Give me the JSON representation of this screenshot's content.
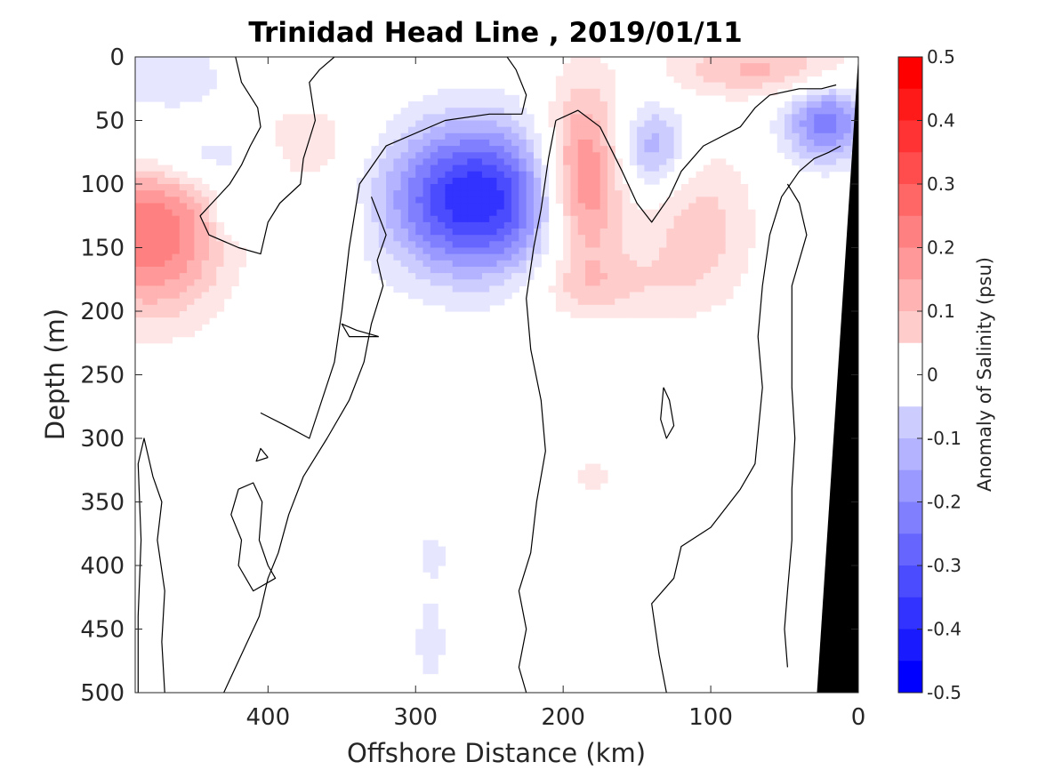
{
  "chart_data": {
    "type": "heatmap",
    "title": "Trinidad Head Line , 2019/01/11",
    "xlabel": "Offshore Distance (km)",
    "ylabel": "Depth (m)",
    "x_reversed": true,
    "y_reversed": true,
    "xlim": [
      490,
      0
    ],
    "ylim": [
      0,
      500
    ],
    "xticks": [
      "400",
      "300",
      "200",
      "100",
      "0"
    ],
    "xtick_values": [
      400,
      300,
      200,
      100,
      0
    ],
    "yticks": [
      "0",
      "50",
      "100",
      "150",
      "200",
      "250",
      "300",
      "350",
      "400",
      "450",
      "500"
    ],
    "ytick_values": [
      0,
      50,
      100,
      150,
      200,
      250,
      300,
      350,
      400,
      450,
      500
    ],
    "colorbar": {
      "label": "Anomaly of Salinity (psu)",
      "range": [
        -0.5,
        0.5
      ],
      "step": 0.05,
      "tick_values": [
        0.5,
        0.4,
        0.3,
        0.2,
        0.1,
        0,
        -0.1,
        -0.2,
        -0.3,
        -0.4,
        -0.5
      ],
      "tick_labels": [
        "0.5",
        "0.4",
        "0.3",
        "0.2",
        "0.1",
        "0",
        "-0.1",
        "-0.2",
        "-0.3",
        "-0.4",
        "-0.5"
      ],
      "positive_color": "#ff0000",
      "negative_color": "#0000ff",
      "neutral_color": "#ffffff"
    },
    "zero_contour_color": "#000000",
    "land_color": "#000000",
    "grid": false,
    "features": [
      {
        "kind": "anomaly",
        "sign": "negative",
        "x_km": 260,
        "depth_m": 112,
        "peak": -0.45,
        "sx_km": 42,
        "sd_m": 42
      },
      {
        "kind": "anomaly",
        "sign": "positive",
        "x_km": 187,
        "depth_m": 97,
        "peak": 0.32,
        "sx_km": 20,
        "sd_m": 50
      },
      {
        "kind": "anomaly",
        "sign": "positive",
        "x_km": 480,
        "depth_m": 140,
        "peak": 0.3,
        "sx_km": 35,
        "sd_m": 45
      },
      {
        "kind": "anomaly",
        "sign": "negative",
        "x_km": 22,
        "depth_m": 52,
        "peak": -0.28,
        "sx_km": 20,
        "sd_m": 22
      },
      {
        "kind": "anomaly",
        "sign": "negative",
        "x_km": 140,
        "depth_m": 72,
        "peak": -0.2,
        "sx_km": 17,
        "sd_m": 25
      },
      {
        "kind": "anomaly",
        "sign": "negative",
        "x_km": 445,
        "depth_m": 80,
        "peak": -0.12,
        "sx_km": 35,
        "sd_m": 15
      },
      {
        "kind": "anomaly",
        "sign": "negative",
        "x_km": 425,
        "depth_m": 120,
        "peak": -0.1,
        "sx_km": 10,
        "sd_m": 15
      },
      {
        "kind": "anomaly",
        "sign": "negative",
        "x_km": 470,
        "depth_m": 20,
        "peak": -0.09,
        "sx_km": 35,
        "sd_m": 25
      },
      {
        "kind": "anomaly",
        "sign": "positive",
        "x_km": 65,
        "depth_m": 10,
        "peak": 0.16,
        "sx_km": 45,
        "sd_m": 15
      },
      {
        "kind": "anomaly",
        "sign": "positive",
        "x_km": 110,
        "depth_m": 135,
        "peak": 0.13,
        "sx_km": 28,
        "sd_m": 45
      },
      {
        "kind": "anomaly",
        "sign": "positive",
        "x_km": 375,
        "depth_m": 70,
        "peak": 0.1,
        "sx_km": 28,
        "sd_m": 25
      },
      {
        "kind": "anomaly",
        "sign": "positive",
        "x_km": 175,
        "depth_m": 180,
        "peak": 0.09,
        "sx_km": 35,
        "sd_m": 18
      },
      {
        "kind": "anomaly",
        "sign": "positive",
        "x_km": 10,
        "depth_m": 400,
        "peak": 0.08,
        "sx_km": 6,
        "sd_m": 120
      },
      {
        "kind": "anomaly",
        "sign": "positive",
        "x_km": 180,
        "depth_m": 330,
        "peak": 0.07,
        "sx_km": 10,
        "sd_m": 12
      },
      {
        "kind": "anomaly",
        "sign": "negative",
        "x_km": 290,
        "depth_m": 460,
        "peak": -0.07,
        "sx_km": 10,
        "sd_m": 35
      },
      {
        "kind": "anomaly",
        "sign": "negative",
        "x_km": 288,
        "depth_m": 390,
        "peak": -0.06,
        "sx_km": 8,
        "sd_m": 15
      },
      {
        "kind": "anomaly",
        "sign": "positive",
        "x_km": 350,
        "depth_m": 130,
        "peak": 0.07,
        "sx_km": 12,
        "sd_m": 15
      }
    ],
    "zero_contours": [
      {
        "name": "contour-west-deep",
        "points": [
          [
            470,
            500
          ],
          [
            472,
            460
          ],
          [
            470,
            420
          ],
          [
            475,
            380
          ],
          [
            472,
            350
          ],
          [
            478,
            330
          ],
          [
            484,
            300
          ],
          [
            488,
            320
          ],
          [
            486,
            380
          ],
          [
            488,
            440
          ],
          [
            488,
            500
          ]
        ]
      },
      {
        "name": "contour-central-west",
        "points": [
          [
            405,
            280
          ],
          [
            388,
            290
          ],
          [
            372,
            300
          ],
          [
            355,
            240
          ],
          [
            350,
            200
          ],
          [
            345,
            150
          ],
          [
            338,
            100
          ],
          [
            320,
            70
          ],
          [
            280,
            50
          ],
          [
            250,
            45
          ],
          [
            228,
            45
          ],
          [
            225,
            30
          ],
          [
            232,
            10
          ],
          [
            238,
            0
          ],
          [
            355,
            0
          ],
          [
            365,
            10
          ],
          [
            372,
            20
          ],
          [
            368,
            50
          ],
          [
            376,
            80
          ],
          [
            378,
            100
          ],
          [
            392,
            115
          ],
          [
            400,
            130
          ],
          [
            405,
            155
          ],
          [
            420,
            150
          ],
          [
            440,
            140
          ],
          [
            446,
            125
          ],
          [
            438,
            115
          ],
          [
            426,
            100
          ],
          [
            418,
            85
          ],
          [
            412,
            70
          ],
          [
            405,
            55
          ],
          [
            407,
            40
          ],
          [
            418,
            20
          ],
          [
            422,
            0
          ]
        ]
      },
      {
        "name": "contour-vertical-left",
        "points": [
          [
            330,
            110
          ],
          [
            320,
            140
          ],
          [
            326,
            160
          ],
          [
            322,
            180
          ],
          [
            330,
            210
          ],
          [
            335,
            240
          ],
          [
            345,
            270
          ],
          [
            360,
            300
          ],
          [
            376,
            330
          ],
          [
            386,
            360
          ],
          [
            393,
            390
          ],
          [
            400,
            410
          ],
          [
            406,
            440
          ],
          [
            418,
            470
          ],
          [
            430,
            500
          ]
        ]
      },
      {
        "name": "contour-vertical-right",
        "points": [
          [
            205,
            50
          ],
          [
            210,
            80
          ],
          [
            215,
            120
          ],
          [
            220,
            150
          ],
          [
            225,
            190
          ],
          [
            222,
            230
          ],
          [
            215,
            270
          ],
          [
            212,
            310
          ],
          [
            218,
            350
          ],
          [
            222,
            390
          ],
          [
            230,
            420
          ],
          [
            225,
            450
          ],
          [
            230,
            480
          ],
          [
            225,
            500
          ]
        ]
      },
      {
        "name": "contour-right-hump",
        "points": [
          [
            205,
            50
          ],
          [
            190,
            42
          ],
          [
            175,
            55
          ],
          [
            160,
            90
          ],
          [
            150,
            115
          ],
          [
            140,
            130
          ],
          [
            128,
            110
          ],
          [
            120,
            90
          ],
          [
            105,
            70
          ],
          [
            80,
            55
          ],
          [
            70,
            40
          ],
          [
            60,
            30
          ],
          [
            40,
            25
          ],
          [
            25,
            25
          ],
          [
            15,
            22
          ]
        ]
      },
      {
        "name": "contour-east-deep",
        "points": [
          [
            130,
            500
          ],
          [
            135,
            470
          ],
          [
            140,
            430
          ],
          [
            125,
            410
          ],
          [
            120,
            385
          ],
          [
            100,
            370
          ],
          [
            80,
            340
          ],
          [
            70,
            320
          ],
          [
            65,
            260
          ],
          [
            68,
            220
          ],
          [
            65,
            180
          ],
          [
            60,
            140
          ],
          [
            52,
            110
          ],
          [
            40,
            90
          ],
          [
            30,
            80
          ],
          [
            20,
            75
          ],
          [
            12,
            70
          ]
        ]
      },
      {
        "name": "contour-near-coast",
        "points": [
          [
            48,
            100
          ],
          [
            40,
            115
          ],
          [
            35,
            140
          ],
          [
            40,
            160
          ],
          [
            45,
            180
          ],
          [
            45,
            200
          ],
          [
            45,
            230
          ],
          [
            45,
            260
          ],
          [
            43,
            300
          ],
          [
            45,
            340
          ],
          [
            45,
            380
          ],
          [
            48,
            420
          ],
          [
            50,
            450
          ],
          [
            48,
            480
          ]
        ]
      }
    ],
    "small_contours": [
      {
        "name": "contour-loop-deep-west",
        "points": [
          [
            420,
            340
          ],
          [
            410,
            335
          ],
          [
            404,
            350
          ],
          [
            406,
            380
          ],
          [
            400,
            400
          ],
          [
            395,
            410
          ],
          [
            410,
            420
          ],
          [
            420,
            400
          ],
          [
            418,
            380
          ],
          [
            425,
            360
          ],
          [
            420,
            340
          ]
        ]
      },
      {
        "name": "contour-loop-mid",
        "points": [
          [
            132,
            260
          ],
          [
            128,
            270
          ],
          [
            125,
            290
          ],
          [
            130,
            300
          ],
          [
            134,
            285
          ],
          [
            132,
            260
          ]
        ]
      },
      {
        "name": "contour-loop-tiny",
        "points": [
          [
            400,
            315
          ],
          [
            405,
            308
          ],
          [
            408,
            318
          ],
          [
            400,
            315
          ]
        ]
      },
      {
        "name": "contour-loop-top",
        "points": [
          [
            325,
            220
          ],
          [
            340,
            215
          ],
          [
            350,
            210
          ],
          [
            345,
            220
          ],
          [
            325,
            220
          ]
        ]
      }
    ],
    "coast": [
      [
        0,
        0
      ],
      [
        28,
        500
      ],
      [
        0,
        500
      ]
    ]
  }
}
